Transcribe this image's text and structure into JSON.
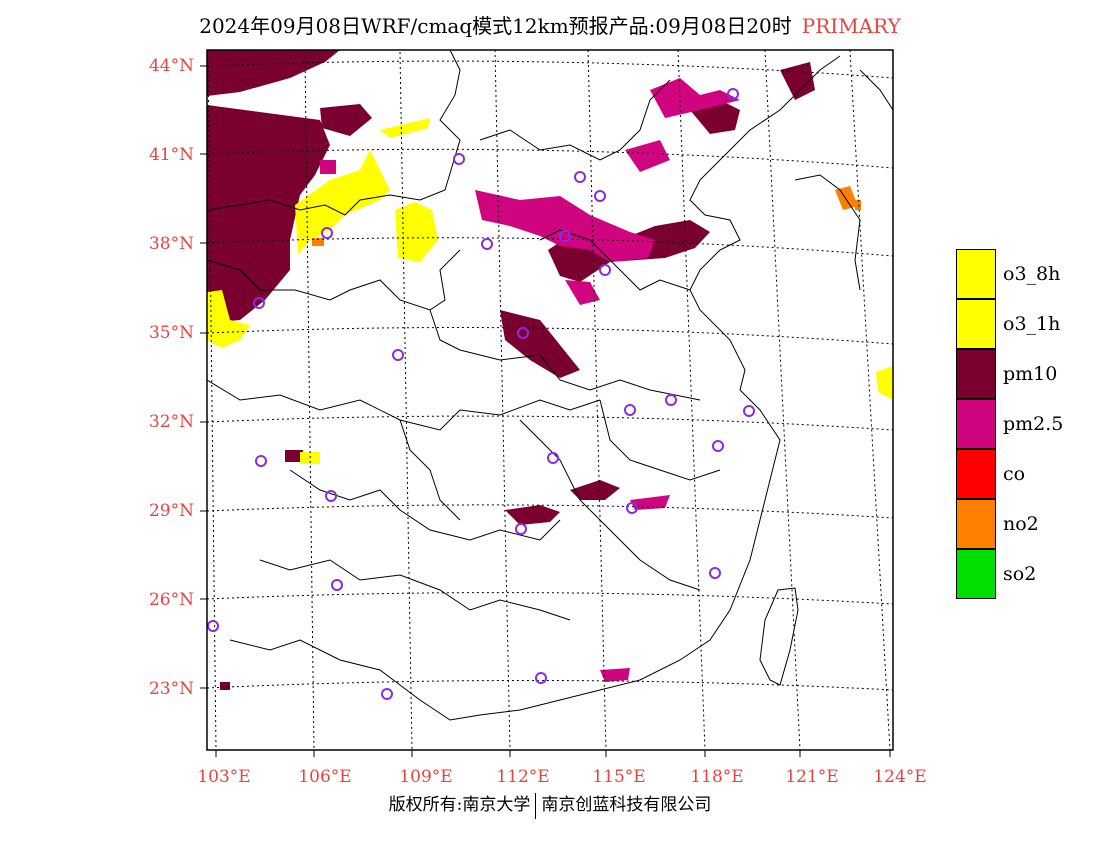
{
  "title": {
    "main": "2024年09月08日WRF/cmaq模式12km预报产品:09月08日20时",
    "tag": "PRIMARY",
    "tag_color": "#e8433f"
  },
  "map": {
    "lat_labels": [
      "44°N",
      "41°N",
      "38°N",
      "35°N",
      "32°N",
      "29°N",
      "26°N",
      "23°N"
    ],
    "lon_labels": [
      "103°E",
      "106°E",
      "109°E",
      "112°E",
      "115°E",
      "118°E",
      "121°E",
      "124°E"
    ],
    "colors": {
      "pm10": "#7a0030",
      "pm25": "#d0047e",
      "o3": "#ffff00",
      "no2": "#ff7f00",
      "station_ring": "#8a2be2",
      "label_red": "#e8433f"
    }
  },
  "legend": {
    "items": [
      {
        "label": "o3_8h",
        "color": "#ffff00"
      },
      {
        "label": "o3_1h",
        "color": "#ffff00"
      },
      {
        "label": "pm10",
        "color": "#7a0030"
      },
      {
        "label": "pm2.5",
        "color": "#d0047e"
      },
      {
        "label": "co",
        "color": "#ff0000"
      },
      {
        "label": "no2",
        "color": "#ff7f00"
      },
      {
        "label": "so2",
        "color": "#00e000"
      }
    ]
  },
  "footer": {
    "left": "版权所有:南京大学",
    "right": "南京创蓝科技有限公司"
  }
}
